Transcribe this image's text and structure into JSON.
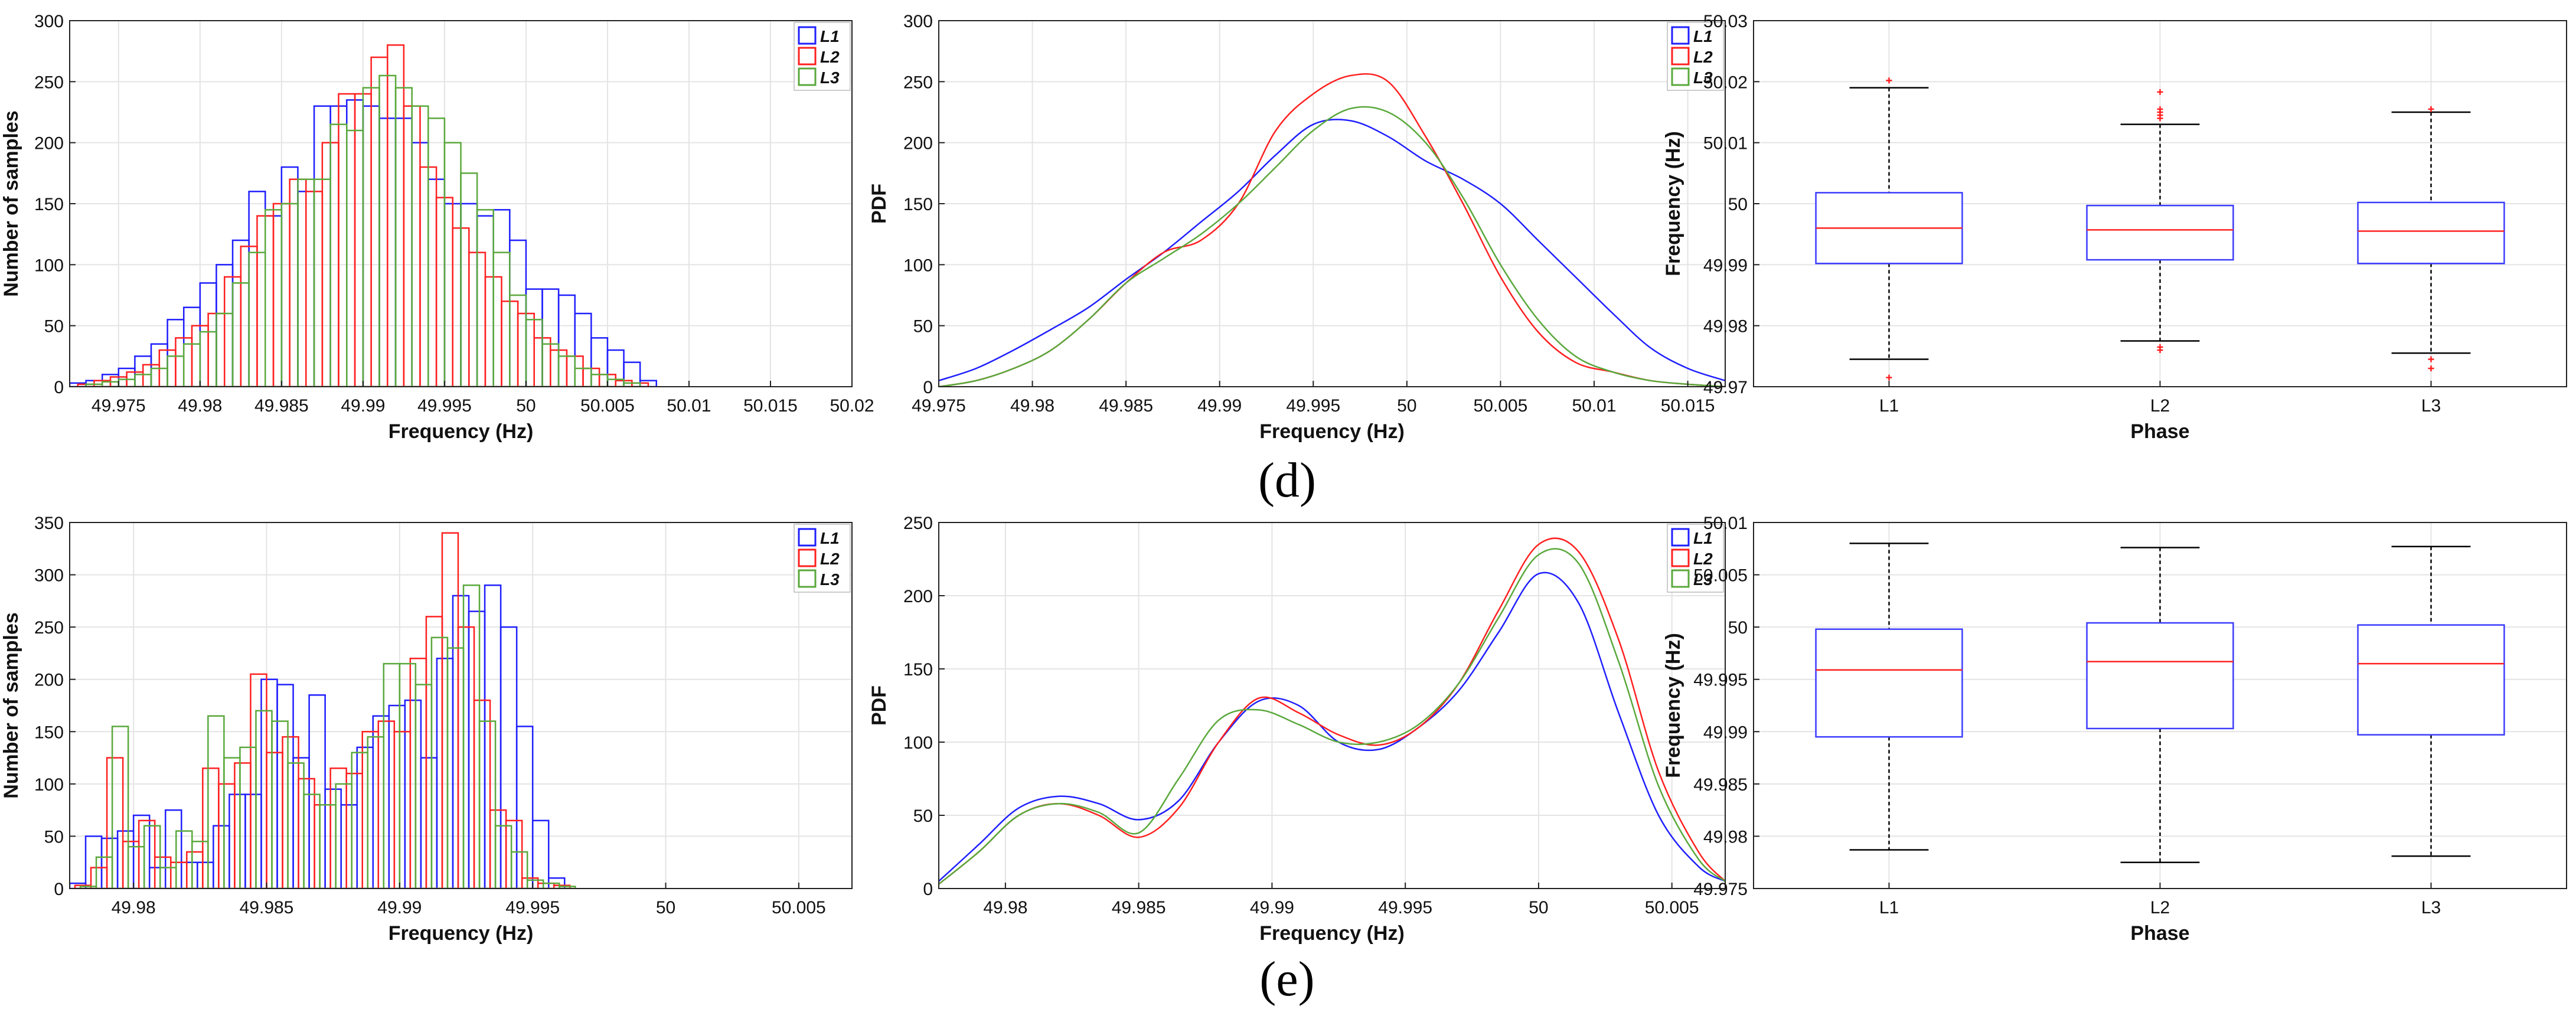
{
  "captions": {
    "top": "(d)",
    "bottom": "(e)"
  },
  "colors": {
    "L1": "#1f1fff",
    "L2": "#ff2020",
    "L3": "#5aa83c",
    "median": "#ff2020",
    "box": "#3b3bff",
    "whisker": "#000000",
    "outlier": "#ff2020",
    "grid": "#e4e4e4"
  },
  "chart_data": [
    {
      "id": "d-hist",
      "type": "bar",
      "row": "d",
      "col": 0,
      "title": "",
      "xlabel": "Frequency (Hz)",
      "ylabel": "Number of samples",
      "xlim": [
        49.972,
        50.02
      ],
      "ylim": [
        0,
        300
      ],
      "xticks": [
        49.975,
        49.98,
        49.985,
        49.99,
        49.995,
        50,
        50.005,
        50.01,
        50.015,
        50.02
      ],
      "xtick_labels": [
        "49.975",
        "49.98",
        "49.985",
        "49.99",
        "49.995",
        "50",
        "50.005",
        "50.01",
        "50.015",
        "50.02"
      ],
      "yticks": [
        0,
        50,
        100,
        150,
        200,
        250,
        300
      ],
      "ytick_labels": [
        "0",
        "50",
        "100",
        "150",
        "200",
        "250",
        "300"
      ],
      "legend": [
        "L1",
        "L2",
        "L3"
      ],
      "legend_position": "top-right",
      "bins": {
        "L1": {
          "start": 49.972,
          "width": 0.001,
          "values": [
            3,
            5,
            10,
            15,
            25,
            35,
            55,
            65,
            85,
            100,
            120,
            160,
            140,
            180,
            160,
            230,
            230,
            235,
            230,
            220,
            220,
            200,
            170,
            150,
            150,
            140,
            145,
            120,
            80,
            80,
            75,
            60,
            40,
            30,
            20,
            5
          ]
        },
        "L2": {
          "start": 49.9725,
          "width": 0.001,
          "values": [
            2,
            5,
            8,
            12,
            18,
            30,
            40,
            50,
            60,
            90,
            115,
            140,
            150,
            170,
            160,
            200,
            240,
            240,
            270,
            280,
            230,
            180,
            155,
            130,
            110,
            90,
            70,
            60,
            40,
            30,
            25,
            15,
            10,
            5,
            3
          ]
        },
        "L3": {
          "start": 49.973,
          "width": 0.001,
          "values": [
            2,
            4,
            6,
            10,
            15,
            25,
            35,
            45,
            60,
            85,
            110,
            145,
            150,
            170,
            170,
            215,
            210,
            245,
            255,
            245,
            230,
            220,
            200,
            175,
            145,
            110,
            75,
            55,
            35,
            25,
            15,
            10,
            6,
            3
          ]
        }
      }
    },
    {
      "id": "d-pdf",
      "type": "line",
      "row": "d",
      "col": 1,
      "title": "",
      "xlabel": "Frequency (Hz)",
      "ylabel": "PDF",
      "xlim": [
        49.975,
        50.017
      ],
      "ylim": [
        0,
        300
      ],
      "xticks": [
        49.975,
        49.98,
        49.985,
        49.99,
        49.995,
        50,
        50.005,
        50.01,
        50.015
      ],
      "xtick_labels": [
        "49.975",
        "49.98",
        "49.985",
        "49.99",
        "49.995",
        "50",
        "50.005",
        "50.01",
        "50.015"
      ],
      "yticks": [
        0,
        50,
        100,
        150,
        200,
        250,
        300
      ],
      "ytick_labels": [
        "0",
        "50",
        "100",
        "150",
        "200",
        "250",
        "300"
      ],
      "legend": [
        "L1",
        "L2",
        "L3"
      ],
      "legend_position": "top-right",
      "series": [
        {
          "name": "L1",
          "x": [
            49.975,
            49.977,
            49.979,
            49.981,
            49.983,
            49.985,
            49.987,
            49.989,
            49.991,
            49.993,
            49.995,
            49.997,
            49.999,
            50.001,
            50.003,
            50.005,
            50.007,
            50.009,
            50.011,
            50.013,
            50.015,
            50.017
          ],
          "y": [
            5,
            15,
            30,
            47,
            65,
            88,
            110,
            135,
            160,
            190,
            215,
            218,
            205,
            185,
            170,
            150,
            120,
            90,
            60,
            32,
            15,
            5
          ]
        },
        {
          "name": "L2",
          "x": [
            49.975,
            49.977,
            49.979,
            49.981,
            49.983,
            49.985,
            49.987,
            49.989,
            49.991,
            49.993,
            49.995,
            49.997,
            49.999,
            50.001,
            50.003,
            50.005,
            50.007,
            50.009,
            50.011,
            50.013,
            50.015,
            50.017
          ],
          "y": [
            0,
            5,
            15,
            30,
            55,
            85,
            110,
            120,
            150,
            210,
            240,
            255,
            250,
            205,
            150,
            90,
            45,
            20,
            12,
            5,
            2,
            0
          ]
        },
        {
          "name": "L3",
          "x": [
            49.975,
            49.977,
            49.979,
            49.981,
            49.983,
            49.985,
            49.987,
            49.989,
            49.991,
            49.993,
            49.995,
            49.997,
            49.999,
            50.001,
            50.003,
            50.005,
            50.007,
            50.009,
            50.011,
            50.013,
            50.015,
            50.017
          ],
          "y": [
            0,
            5,
            15,
            30,
            55,
            85,
            105,
            125,
            150,
            180,
            210,
            228,
            225,
            200,
            155,
            100,
            55,
            25,
            12,
            5,
            2,
            0
          ]
        }
      ]
    },
    {
      "id": "d-box",
      "type": "box",
      "row": "d",
      "col": 2,
      "title": "",
      "xlabel": "Phase",
      "ylabel": "Frequency (Hz)",
      "ylim": [
        49.97,
        50.03
      ],
      "yticks": [
        49.97,
        49.98,
        49.99,
        50,
        50.01,
        50.02,
        50.03
      ],
      "ytick_labels": [
        "49.97",
        "49.98",
        "49.99",
        "50",
        "50.01",
        "50.02",
        "50.03"
      ],
      "categories": [
        "L1",
        "L2",
        "L3"
      ],
      "boxes": [
        {
          "min": 49.9745,
          "q1": 49.9902,
          "median": 49.996,
          "q3": 50.0018,
          "max": 50.019,
          "outliers": [
            49.9715,
            50.0202
          ]
        },
        {
          "min": 49.9775,
          "q1": 49.9908,
          "median": 49.9957,
          "q3": 49.9997,
          "max": 50.013,
          "outliers": [
            49.9765,
            49.976,
            50.014,
            50.0145,
            50.015,
            50.0155,
            50.0183
          ]
        },
        {
          "min": 49.9755,
          "q1": 49.9902,
          "median": 49.9955,
          "q3": 50.0002,
          "max": 50.015,
          "outliers": [
            49.9745,
            49.973,
            50.0155
          ]
        }
      ]
    },
    {
      "id": "e-hist",
      "type": "bar",
      "row": "e",
      "col": 0,
      "title": "",
      "xlabel": "Frequency (Hz)",
      "ylabel": "Number of samples",
      "xlim": [
        49.9776,
        50.007
      ],
      "ylim": [
        0,
        350
      ],
      "xticks": [
        49.98,
        49.985,
        49.99,
        49.995,
        50,
        50.005
      ],
      "xtick_labels": [
        "49.98",
        "49.985",
        "49.99",
        "49.995",
        "50",
        "50.005"
      ],
      "yticks": [
        0,
        50,
        100,
        150,
        200,
        250,
        300,
        350
      ],
      "ytick_labels": [
        "0",
        "50",
        "100",
        "150",
        "200",
        "250",
        "300",
        "350"
      ],
      "legend": [
        "L1",
        "L2",
        "L3"
      ],
      "legend_position": "top-right",
      "bins": {
        "L1": {
          "start": 49.9776,
          "width": 0.0006,
          "values": [
            5,
            50,
            48,
            55,
            70,
            20,
            75,
            25,
            25,
            60,
            90,
            90,
            200,
            195,
            125,
            185,
            95,
            80,
            135,
            165,
            175,
            180,
            125,
            220,
            280,
            265,
            290,
            250,
            155,
            65,
            10
          ]
        },
        "L2": {
          "start": 49.9778,
          "width": 0.0006,
          "values": [
            3,
            20,
            125,
            45,
            65,
            30,
            25,
            35,
            115,
            100,
            120,
            205,
            130,
            145,
            105,
            80,
            115,
            110,
            150,
            160,
            150,
            220,
            260,
            340,
            250,
            180,
            75,
            65,
            10,
            5,
            3
          ]
        },
        "L3": {
          "start": 49.978,
          "width": 0.0006,
          "values": [
            2,
            30,
            155,
            40,
            60,
            20,
            55,
            45,
            165,
            125,
            135,
            170,
            160,
            120,
            90,
            80,
            100,
            130,
            145,
            215,
            215,
            195,
            240,
            230,
            290,
            160,
            60,
            35,
            8,
            5,
            2
          ]
        }
      }
    },
    {
      "id": "e-pdf",
      "type": "line",
      "row": "e",
      "col": 1,
      "title": "",
      "xlabel": "Frequency (Hz)",
      "ylabel": "PDF",
      "xlim": [
        49.9775,
        50.007
      ],
      "ylim": [
        0,
        250
      ],
      "xticks": [
        49.98,
        49.985,
        49.99,
        49.995,
        50,
        50.005
      ],
      "xtick_labels": [
        "49.98",
        "49.985",
        "49.99",
        "49.995",
        "50",
        "50.005"
      ],
      "yticks": [
        0,
        50,
        100,
        150,
        200,
        250
      ],
      "ytick_labels": [
        "0",
        "50",
        "100",
        "150",
        "200",
        "250"
      ],
      "legend": [
        "L1",
        "L2",
        "L3"
      ],
      "legend_position": "top-right",
      "series": [
        {
          "name": "L1",
          "x": [
            49.9775,
            49.979,
            49.9805,
            49.982,
            49.9835,
            49.985,
            49.9865,
            49.988,
            49.9895,
            49.991,
            49.9925,
            49.994,
            49.9955,
            49.997,
            49.9985,
            50,
            50.0015,
            50.003,
            50.0045,
            50.006,
            50.007
          ],
          "y": [
            5,
            30,
            55,
            63,
            58,
            47,
            60,
            100,
            128,
            125,
            100,
            95,
            110,
            135,
            175,
            215,
            195,
            120,
            50,
            15,
            5
          ]
        },
        {
          "name": "L2",
          "x": [
            49.9775,
            49.979,
            49.9805,
            49.982,
            49.9835,
            49.985,
            49.9865,
            49.988,
            49.9895,
            49.991,
            49.9925,
            49.994,
            49.9955,
            49.997,
            49.9985,
            50,
            50.0015,
            50.003,
            50.0045,
            50.006,
            50.007
          ],
          "y": [
            3,
            25,
            50,
            58,
            50,
            35,
            55,
            100,
            130,
            120,
            105,
            98,
            110,
            140,
            190,
            235,
            230,
            170,
            80,
            25,
            5
          ]
        },
        {
          "name": "L3",
          "x": [
            49.9775,
            49.979,
            49.9805,
            49.982,
            49.9835,
            49.985,
            49.9865,
            49.988,
            49.9895,
            49.991,
            49.9925,
            49.994,
            49.9955,
            49.997,
            49.9985,
            50,
            50.0015,
            50.003,
            50.0045,
            50.006,
            50.007
          ],
          "y": [
            3,
            25,
            50,
            58,
            52,
            38,
            75,
            115,
            122,
            112,
            100,
            100,
            112,
            140,
            185,
            228,
            222,
            155,
            70,
            20,
            5
          ]
        }
      ]
    },
    {
      "id": "e-box",
      "type": "box",
      "row": "e",
      "col": 2,
      "title": "",
      "xlabel": "Phase",
      "ylabel": "Frequency (Hz)",
      "ylim": [
        49.975,
        50.01
      ],
      "yticks": [
        49.975,
        49.98,
        49.985,
        49.99,
        49.995,
        50,
        50.005,
        50.01
      ],
      "ytick_labels": [
        "49.975",
        "49.98",
        "49.985",
        "49.99",
        "49.995",
        "50",
        "50.005",
        "50.01"
      ],
      "categories": [
        "L1",
        "L2",
        "L3"
      ],
      "boxes": [
        {
          "min": 49.9787,
          "q1": 49.9895,
          "median": 49.9959,
          "q3": 49.9998,
          "max": 50.008,
          "outliers": []
        },
        {
          "min": 49.9775,
          "q1": 49.9903,
          "median": 49.9967,
          "q3": 50.0004,
          "max": 50.0076,
          "outliers": []
        },
        {
          "min": 49.9781,
          "q1": 49.9897,
          "median": 49.9965,
          "q3": 50.0002,
          "max": 50.0077,
          "outliers": []
        }
      ]
    }
  ]
}
